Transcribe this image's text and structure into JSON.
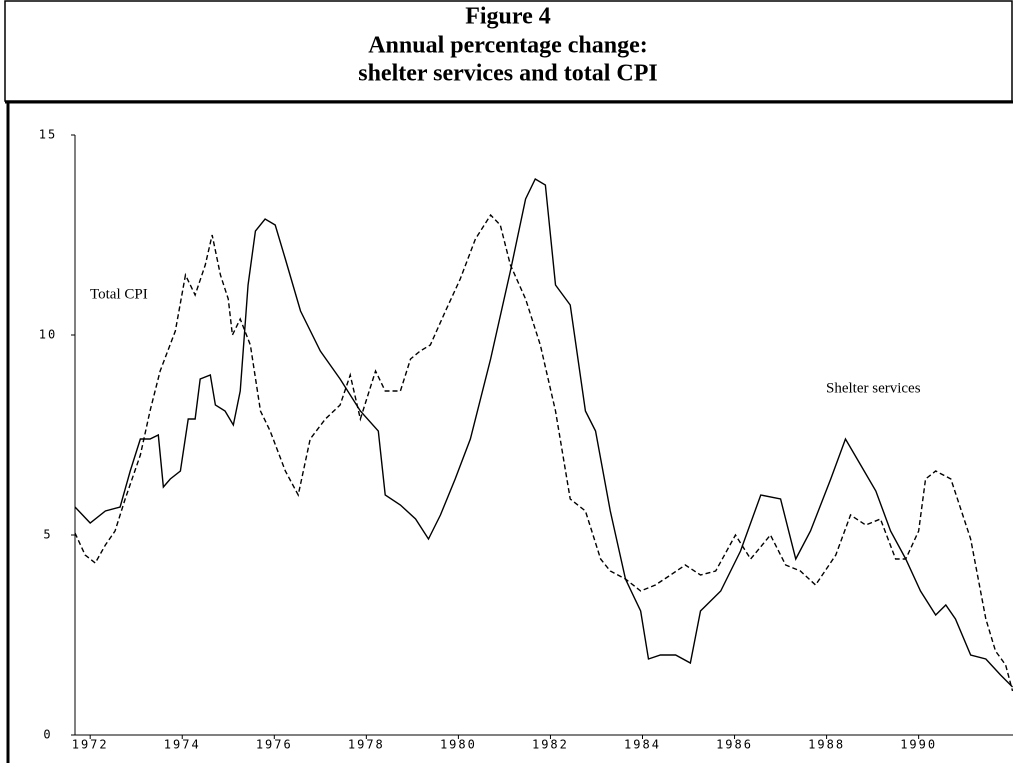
{
  "chart_data": {
    "type": "line",
    "title": "Figure 4",
    "subtitle_lines": [
      "Annual percentage change:",
      "shelter services and total CPI"
    ],
    "xlim": [
      1971.67,
      1992.05
    ],
    "xticks": [
      1972,
      1974,
      1976,
      1978,
      1980,
      1982,
      1984,
      1986,
      1988,
      1990
    ],
    "ylim": [
      0,
      15
    ],
    "yticks": [
      0,
      5,
      10,
      15
    ],
    "series": [
      {
        "name": "Shelter services",
        "color": "#000000",
        "style": "solid",
        "x": [
          1971.67,
          1972.0,
          1972.33,
          1972.65,
          1972.87,
          1973.09,
          1973.3,
          1973.48,
          1973.59,
          1973.74,
          1973.96,
          1974.13,
          1974.28,
          1974.39,
          1974.61,
          1974.72,
          1974.93,
          1975.11,
          1975.26,
          1975.43,
          1975.59,
          1975.8,
          1976.02,
          1976.24,
          1976.57,
          1977.0,
          1977.43,
          1977.87,
          1978.26,
          1978.41,
          1978.74,
          1979.07,
          1979.35,
          1979.61,
          1979.93,
          1980.26,
          1980.7,
          1981.13,
          1981.46,
          1981.67,
          1981.89,
          1982.11,
          1982.43,
          1982.76,
          1982.98,
          1983.3,
          1983.63,
          1983.96,
          1984.13,
          1984.39,
          1984.72,
          1985.04,
          1985.26,
          1985.7,
          1986.13,
          1986.57,
          1987.0,
          1987.33,
          1987.65,
          1988.09,
          1988.41,
          1988.74,
          1989.07,
          1989.39,
          1989.72,
          1990.04,
          1990.37,
          1990.59,
          1990.8,
          1991.13,
          1991.46,
          1991.78,
          1992.04
        ],
        "values": [
          5.7,
          5.3,
          5.6,
          5.7,
          6.6,
          7.4,
          7.4,
          7.5,
          6.2,
          6.4,
          6.6,
          7.9,
          7.9,
          8.9,
          9.0,
          8.25,
          8.1,
          7.75,
          8.6,
          11.25,
          12.6,
          12.9,
          12.75,
          11.9,
          10.6,
          9.6,
          8.9,
          8.1,
          7.6,
          6.0,
          5.75,
          5.4,
          4.9,
          5.5,
          6.4,
          7.4,
          9.4,
          11.6,
          13.4,
          13.9,
          13.75,
          11.25,
          10.75,
          8.1,
          7.6,
          5.6,
          3.9,
          3.1,
          1.9,
          2.0,
          2.0,
          1.8,
          3.1,
          3.6,
          4.6,
          6.0,
          5.9,
          4.4,
          5.1,
          6.4,
          7.4,
          6.75,
          6.1,
          5.1,
          4.4,
          3.6,
          3.0,
          3.25,
          2.9,
          2.0,
          1.9,
          1.5,
          1.2
        ]
      },
      {
        "name": "Total CPI",
        "color": "#000000",
        "style": "dashed",
        "x": [
          1971.67,
          1971.89,
          1972.11,
          1972.33,
          1972.54,
          1972.76,
          1973.09,
          1973.3,
          1973.52,
          1973.85,
          1974.07,
          1974.28,
          1974.5,
          1974.65,
          1974.83,
          1975.0,
          1975.09,
          1975.26,
          1975.48,
          1975.7,
          1975.91,
          1976.24,
          1976.52,
          1976.78,
          1977.11,
          1977.43,
          1977.65,
          1977.87,
          1978.2,
          1978.41,
          1978.74,
          1978.96,
          1979.17,
          1979.39,
          1979.72,
          1980.04,
          1980.37,
          1980.7,
          1980.91,
          1981.13,
          1981.46,
          1981.78,
          1982.11,
          1982.43,
          1982.76,
          1983.09,
          1983.3,
          1983.63,
          1983.96,
          1984.28,
          1984.61,
          1984.93,
          1985.26,
          1985.59,
          1986.02,
          1986.35,
          1986.78,
          1987.11,
          1987.43,
          1987.76,
          1988.2,
          1988.52,
          1988.85,
          1989.17,
          1989.5,
          1989.72,
          1990.0,
          1990.15,
          1990.37,
          1990.7,
          1991.13,
          1991.46,
          1991.67,
          1991.89,
          1992.04
        ],
        "values": [
          5.05,
          4.5,
          4.3,
          4.75,
          5.1,
          5.9,
          7.0,
          8.1,
          9.1,
          10.1,
          11.5,
          11.0,
          11.75,
          12.5,
          11.5,
          10.9,
          10.0,
          10.4,
          9.75,
          8.1,
          7.6,
          6.6,
          6.0,
          7.4,
          7.9,
          8.25,
          9.0,
          7.9,
          9.1,
          8.6,
          8.6,
          9.4,
          9.6,
          9.75,
          10.6,
          11.4,
          12.4,
          13.0,
          12.75,
          11.75,
          10.9,
          9.75,
          8.1,
          5.9,
          5.6,
          4.4,
          4.1,
          3.9,
          3.6,
          3.75,
          4.0,
          4.25,
          4.0,
          4.1,
          5.0,
          4.4,
          5.0,
          4.25,
          4.1,
          3.75,
          4.5,
          5.5,
          5.25,
          5.4,
          4.4,
          4.4,
          5.1,
          6.4,
          6.6,
          6.4,
          4.9,
          2.9,
          2.1,
          1.75,
          1.1
        ]
      }
    ]
  }
}
